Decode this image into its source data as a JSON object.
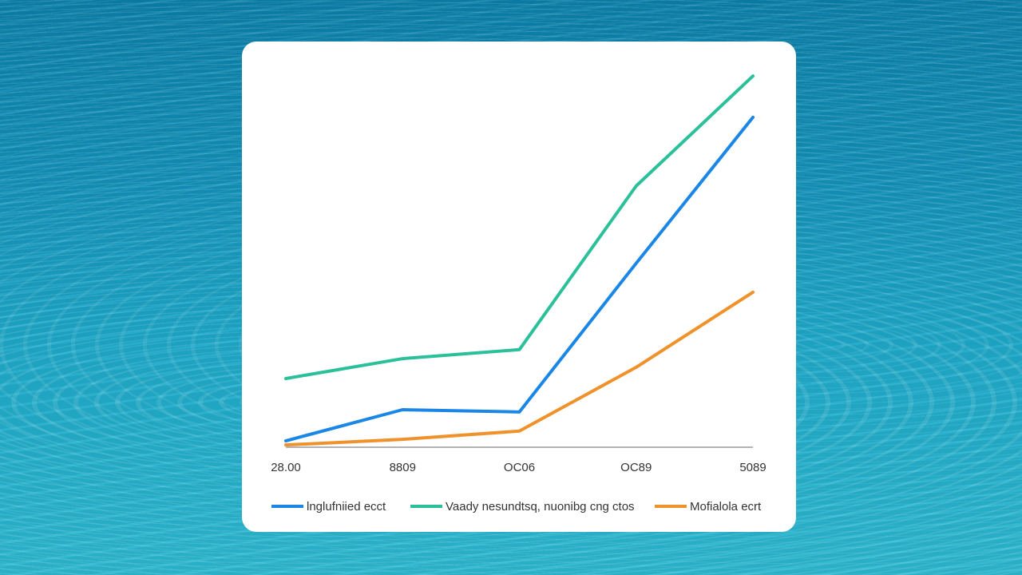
{
  "chart_data": {
    "type": "line",
    "categories": [
      "28.00",
      "8809",
      "OC06",
      "OC89",
      "5089"
    ],
    "ylim": [
      0,
      100
    ],
    "series": [
      {
        "name": "lnglufniied ecct",
        "color": "#1a87e6",
        "values": [
          1.7,
          10,
          9.4,
          49,
          87.9
        ]
      },
      {
        "name": "Vaady nesundtsq, nuonibg cng ctos",
        "color": "#2cc09a",
        "values": [
          18.3,
          23.6,
          26,
          69.6,
          98.9
        ]
      },
      {
        "name": "Mofialola ecrt",
        "color": "#f0922b",
        "values": [
          0.6,
          2.1,
          4.3,
          21.3,
          41.3
        ]
      }
    ]
  }
}
